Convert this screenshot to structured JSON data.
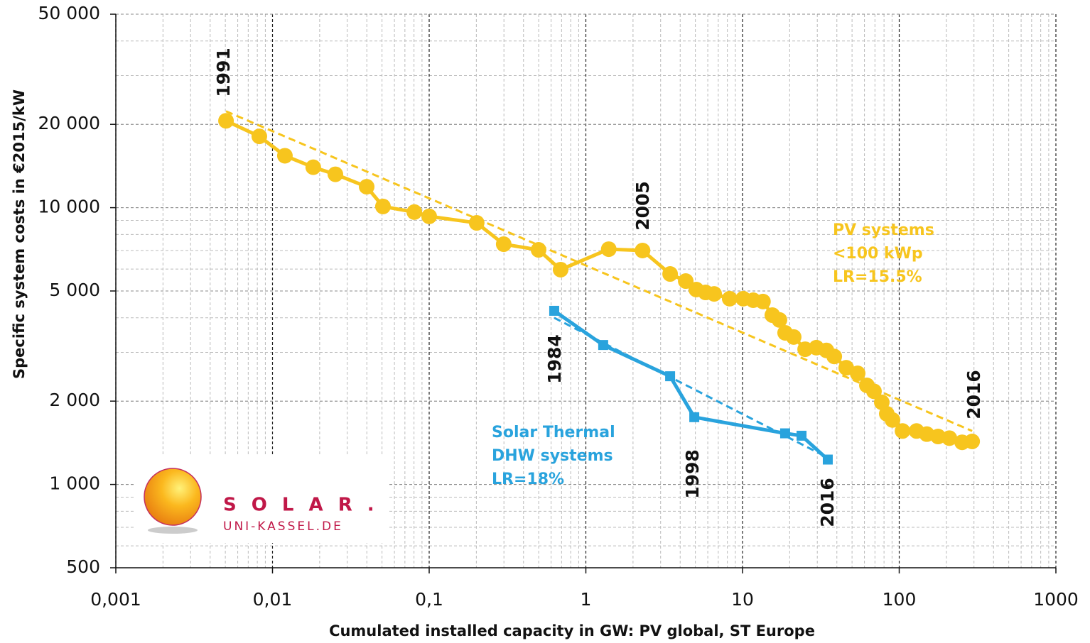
{
  "chart_data": {
    "type": "line",
    "xlabel": "Cumulated installed capacity in GW: PV global, ST Europe",
    "ylabel": "Specific system costs in €2015/kW",
    "xscale": "log",
    "yscale": "log",
    "grid": true,
    "minor_grid": true,
    "xlim": [
      0.001,
      1000
    ],
    "ylim": [
      500,
      50000
    ],
    "xticks": [
      {
        "value": 0.001,
        "label": "0,001"
      },
      {
        "value": 0.01,
        "label": "0,01"
      },
      {
        "value": 0.1,
        "label": "0,1"
      },
      1,
      10,
      100,
      1000
    ],
    "yticks": [
      500,
      {
        "value": 1000,
        "label": "1 000"
      },
      {
        "value": 2000,
        "label": "2 000"
      },
      {
        "value": 5000,
        "label": "5 000"
      },
      {
        "value": 10000,
        "label": "10 000"
      },
      {
        "value": 20000,
        "label": "20 000"
      },
      {
        "value": 50000,
        "label": "50 000"
      }
    ],
    "series": [
      {
        "label": [
          "PV systems",
          "<100 kWp",
          "LR=15.5%"
        ],
        "color": "#f7c51e",
        "marker": "circle",
        "x": [
          0.00505,
          0.00824,
          0.012,
          0.0182,
          0.0252,
          0.0399,
          0.0507,
          0.0804,
          0.1,
          0.201,
          0.299,
          0.499,
          0.69,
          1.4,
          2.3,
          3.45,
          4.34,
          5.07,
          5.81,
          6.59,
          8.28,
          10.1,
          11.7,
          13.5,
          15.5,
          17.2,
          18.7,
          21.2,
          25.1,
          29.6,
          34.3,
          38.5,
          45.9,
          54.3,
          62.2,
          69,
          77.4,
          83.3,
          90.6,
          105,
          129,
          150,
          177,
          209,
          252,
          292
        ],
        "values": [
          20600,
          18100,
          15400,
          14000,
          13200,
          11900,
          10100,
          9640,
          9300,
          8810,
          7380,
          7040,
          5970,
          7080,
          7000,
          5760,
          5430,
          5060,
          4940,
          4880,
          4690,
          4690,
          4630,
          4580,
          4090,
          3930,
          3530,
          3410,
          3080,
          3120,
          3050,
          2900,
          2640,
          2520,
          2280,
          2170,
          1980,
          1800,
          1710,
          1560,
          1560,
          1520,
          1490,
          1470,
          1420,
          1430
        ],
        "trend": {
          "x": [
            0.00505,
            292
          ],
          "values": [
            22300,
            1560
          ]
        }
      },
      {
        "label": [
          "Solar Thermal",
          "DHW systems",
          "LR=18%"
        ],
        "color": "#29a3dd",
        "marker": "square",
        "x": [
          0.628,
          1.29,
          3.45,
          4.92,
          18.7,
          23.8,
          35
        ],
        "values": [
          4240,
          3190,
          2460,
          1750,
          1530,
          1500,
          1230
        ],
        "trend": {
          "x": [
            0.628,
            35
          ],
          "values": [
            4000,
            1250
          ]
        }
      }
    ],
    "annotations": [
      "1991",
      "2005",
      "2016",
      "1984",
      "1998",
      "2016"
    ],
    "logo": {
      "name": "S O L A R .",
      "url": "UNI-KASSEL.DE"
    }
  }
}
